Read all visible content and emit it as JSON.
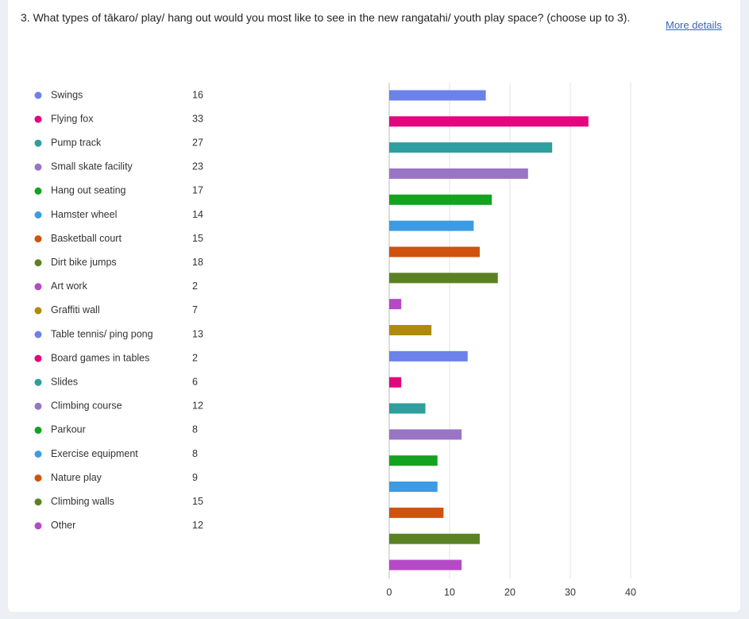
{
  "chart_data": {
    "type": "bar",
    "orientation": "horizontal",
    "title": "3. What types of tākaro/ play/ hang out would you most like to see in the new rangatahi/ youth play space? (choose up to 3).",
    "link": "More details",
    "categories": [
      "Swings",
      "Flying fox",
      "Pump track",
      "Small skate facility",
      "Hang out seating",
      "Hamster wheel",
      "Basketball court",
      "Dirt bike jumps",
      "Art work",
      "Graffiti wall",
      "Table tennis/ ping pong",
      "Board games in tables",
      "Slides",
      "Climbing course",
      "Parkour",
      "Exercise equipment",
      "Nature play",
      "Climbing walls",
      "Other"
    ],
    "values": [
      16,
      33,
      27,
      23,
      17,
      14,
      15,
      18,
      2,
      7,
      13,
      2,
      6,
      12,
      8,
      8,
      9,
      15,
      12
    ],
    "colors": [
      "#6b82ea",
      "#e3067f",
      "#2f9e9f",
      "#9a75c6",
      "#14a31f",
      "#3d9be3",
      "#cf520f",
      "#5b8222",
      "#b54ac7",
      "#b08a0a",
      "#6b82ea",
      "#e3067f",
      "#2f9e9f",
      "#9a75c6",
      "#14a31f",
      "#3d9be3",
      "#cf520f",
      "#5b8222",
      "#b54ac7"
    ],
    "xlim": [
      0,
      40
    ],
    "xticks": [
      0,
      10,
      20,
      30,
      40
    ],
    "grid": true
  }
}
